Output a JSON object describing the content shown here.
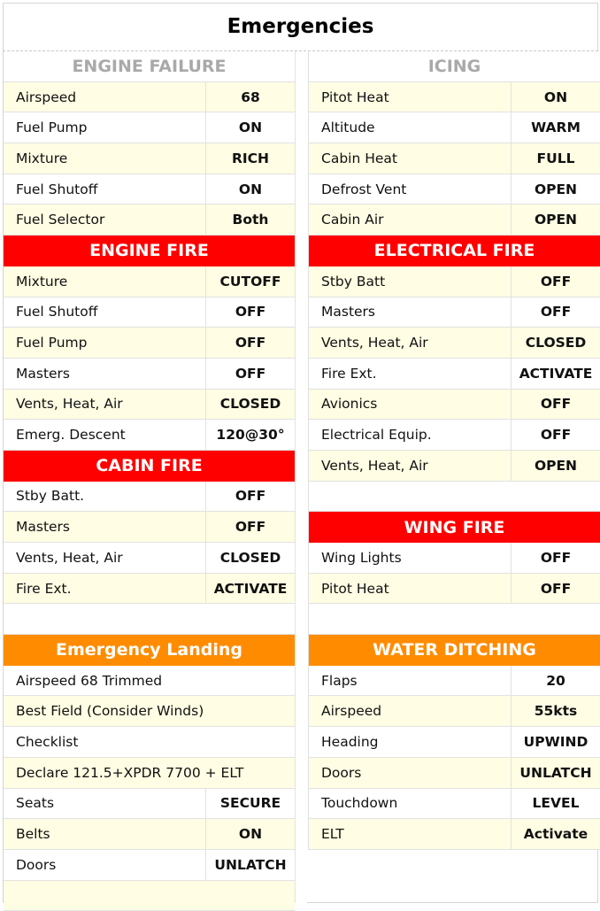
{
  "title": "Emergencies",
  "colors": {
    "red": "#ff0000",
    "orange": "#ff8c00",
    "gray": "#a9a9a9",
    "stripe": "#fffde3"
  },
  "left": [
    {
      "type": "header",
      "style": "gray",
      "label": "ENGINE FAILURE"
    },
    {
      "type": "row",
      "bg": "y",
      "key": "Airspeed",
      "value": "68"
    },
    {
      "type": "row",
      "bg": "w",
      "key": "Fuel Pump",
      "value": "ON"
    },
    {
      "type": "row",
      "bg": "y",
      "key": "Mixture",
      "value": "RICH"
    },
    {
      "type": "row",
      "bg": "w",
      "key": "Fuel Shutoff",
      "value": "ON"
    },
    {
      "type": "row",
      "bg": "y",
      "key": "Fuel Selector",
      "value": "Both"
    },
    {
      "type": "header",
      "style": "red",
      "label": "ENGINE FIRE"
    },
    {
      "type": "row",
      "bg": "y",
      "key": "Mixture",
      "value": "CUTOFF"
    },
    {
      "type": "row",
      "bg": "w",
      "key": "Fuel Shutoff",
      "value": "OFF"
    },
    {
      "type": "row",
      "bg": "y",
      "key": "Fuel Pump",
      "value": "OFF"
    },
    {
      "type": "row",
      "bg": "w",
      "key": "Masters",
      "value": "OFF"
    },
    {
      "type": "row",
      "bg": "y",
      "key": "Vents, Heat, Air",
      "value": "CLOSED"
    },
    {
      "type": "row",
      "bg": "w",
      "key": "Emerg. Descent",
      "value": "120@30°"
    },
    {
      "type": "header",
      "style": "red",
      "label": "CABIN FIRE"
    },
    {
      "type": "row",
      "bg": "w",
      "key": "Stby Batt.",
      "value": "OFF"
    },
    {
      "type": "row",
      "bg": "y",
      "key": "Masters",
      "value": "OFF"
    },
    {
      "type": "row",
      "bg": "w",
      "key": "Vents, Heat, Air",
      "value": "CLOSED"
    },
    {
      "type": "row",
      "bg": "y",
      "key": "Fire Ext.",
      "value": "ACTIVATE"
    },
    {
      "type": "blank",
      "bg": "w"
    },
    {
      "type": "header",
      "style": "orange",
      "label": "Emergency Landing"
    },
    {
      "type": "full",
      "bg": "w",
      "key": "Airspeed 68 Trimmed"
    },
    {
      "type": "full",
      "bg": "y",
      "key": "Best Field (Consider Winds)"
    },
    {
      "type": "full",
      "bg": "w",
      "key": "Checklist"
    },
    {
      "type": "full",
      "bg": "y",
      "key": "Declare 121.5+XPDR 7700 + ELT"
    },
    {
      "type": "row",
      "bg": "w",
      "key": "Seats",
      "value": "SECURE"
    },
    {
      "type": "row",
      "bg": "y",
      "key": "Belts",
      "value": "ON"
    },
    {
      "type": "row",
      "bg": "w",
      "key": "Doors",
      "value": "UNLATCH"
    },
    {
      "type": "blank",
      "bg": "y"
    }
  ],
  "right": [
    {
      "type": "header",
      "style": "gray",
      "label": "ICING"
    },
    {
      "type": "row",
      "bg": "y",
      "key": "Pitot Heat",
      "value": "ON"
    },
    {
      "type": "row",
      "bg": "w",
      "key": "Altitude",
      "value": "WARM"
    },
    {
      "type": "row",
      "bg": "y",
      "key": "Cabin Heat",
      "value": "FULL"
    },
    {
      "type": "row",
      "bg": "w",
      "key": "Defrost Vent",
      "value": "OPEN"
    },
    {
      "type": "row",
      "bg": "y",
      "key": "Cabin Air",
      "value": "OPEN"
    },
    {
      "type": "header",
      "style": "red",
      "label": "ELECTRICAL FIRE"
    },
    {
      "type": "row",
      "bg": "y",
      "key": "Stby Batt",
      "value": "OFF"
    },
    {
      "type": "row",
      "bg": "w",
      "key": "Masters",
      "value": "OFF"
    },
    {
      "type": "row",
      "bg": "y",
      "key": "Vents, Heat, Air",
      "value": "CLOSED"
    },
    {
      "type": "row",
      "bg": "w",
      "key": "Fire Ext.",
      "value": "ACTIVATE"
    },
    {
      "type": "row",
      "bg": "y",
      "key": "Avionics",
      "value": "OFF"
    },
    {
      "type": "row",
      "bg": "w",
      "key": "Electrical Equip.",
      "value": "OFF"
    },
    {
      "type": "row",
      "bg": "y",
      "key": "Vents, Heat, Air",
      "value": "OPEN"
    },
    {
      "type": "blank",
      "bg": "w"
    },
    {
      "type": "header",
      "style": "red",
      "label": "WING FIRE"
    },
    {
      "type": "row",
      "bg": "w",
      "key": "Wing Lights",
      "value": "OFF"
    },
    {
      "type": "row",
      "bg": "y",
      "key": "Pitot Heat",
      "value": "OFF"
    },
    {
      "type": "blank",
      "bg": "w"
    },
    {
      "type": "header",
      "style": "orange",
      "label": "WATER DITCHING"
    },
    {
      "type": "row",
      "bg": "w",
      "key": "Flaps",
      "value": "20"
    },
    {
      "type": "row",
      "bg": "y",
      "key": "Airspeed",
      "value": "55kts"
    },
    {
      "type": "row",
      "bg": "w",
      "key": "Heading",
      "value": "UPWIND"
    },
    {
      "type": "row",
      "bg": "y",
      "key": "Doors",
      "value": "UNLATCH"
    },
    {
      "type": "row",
      "bg": "w",
      "key": "Touchdown",
      "value": "LEVEL"
    },
    {
      "type": "row",
      "bg": "y",
      "key": "ELT",
      "value": "Activate"
    }
  ]
}
